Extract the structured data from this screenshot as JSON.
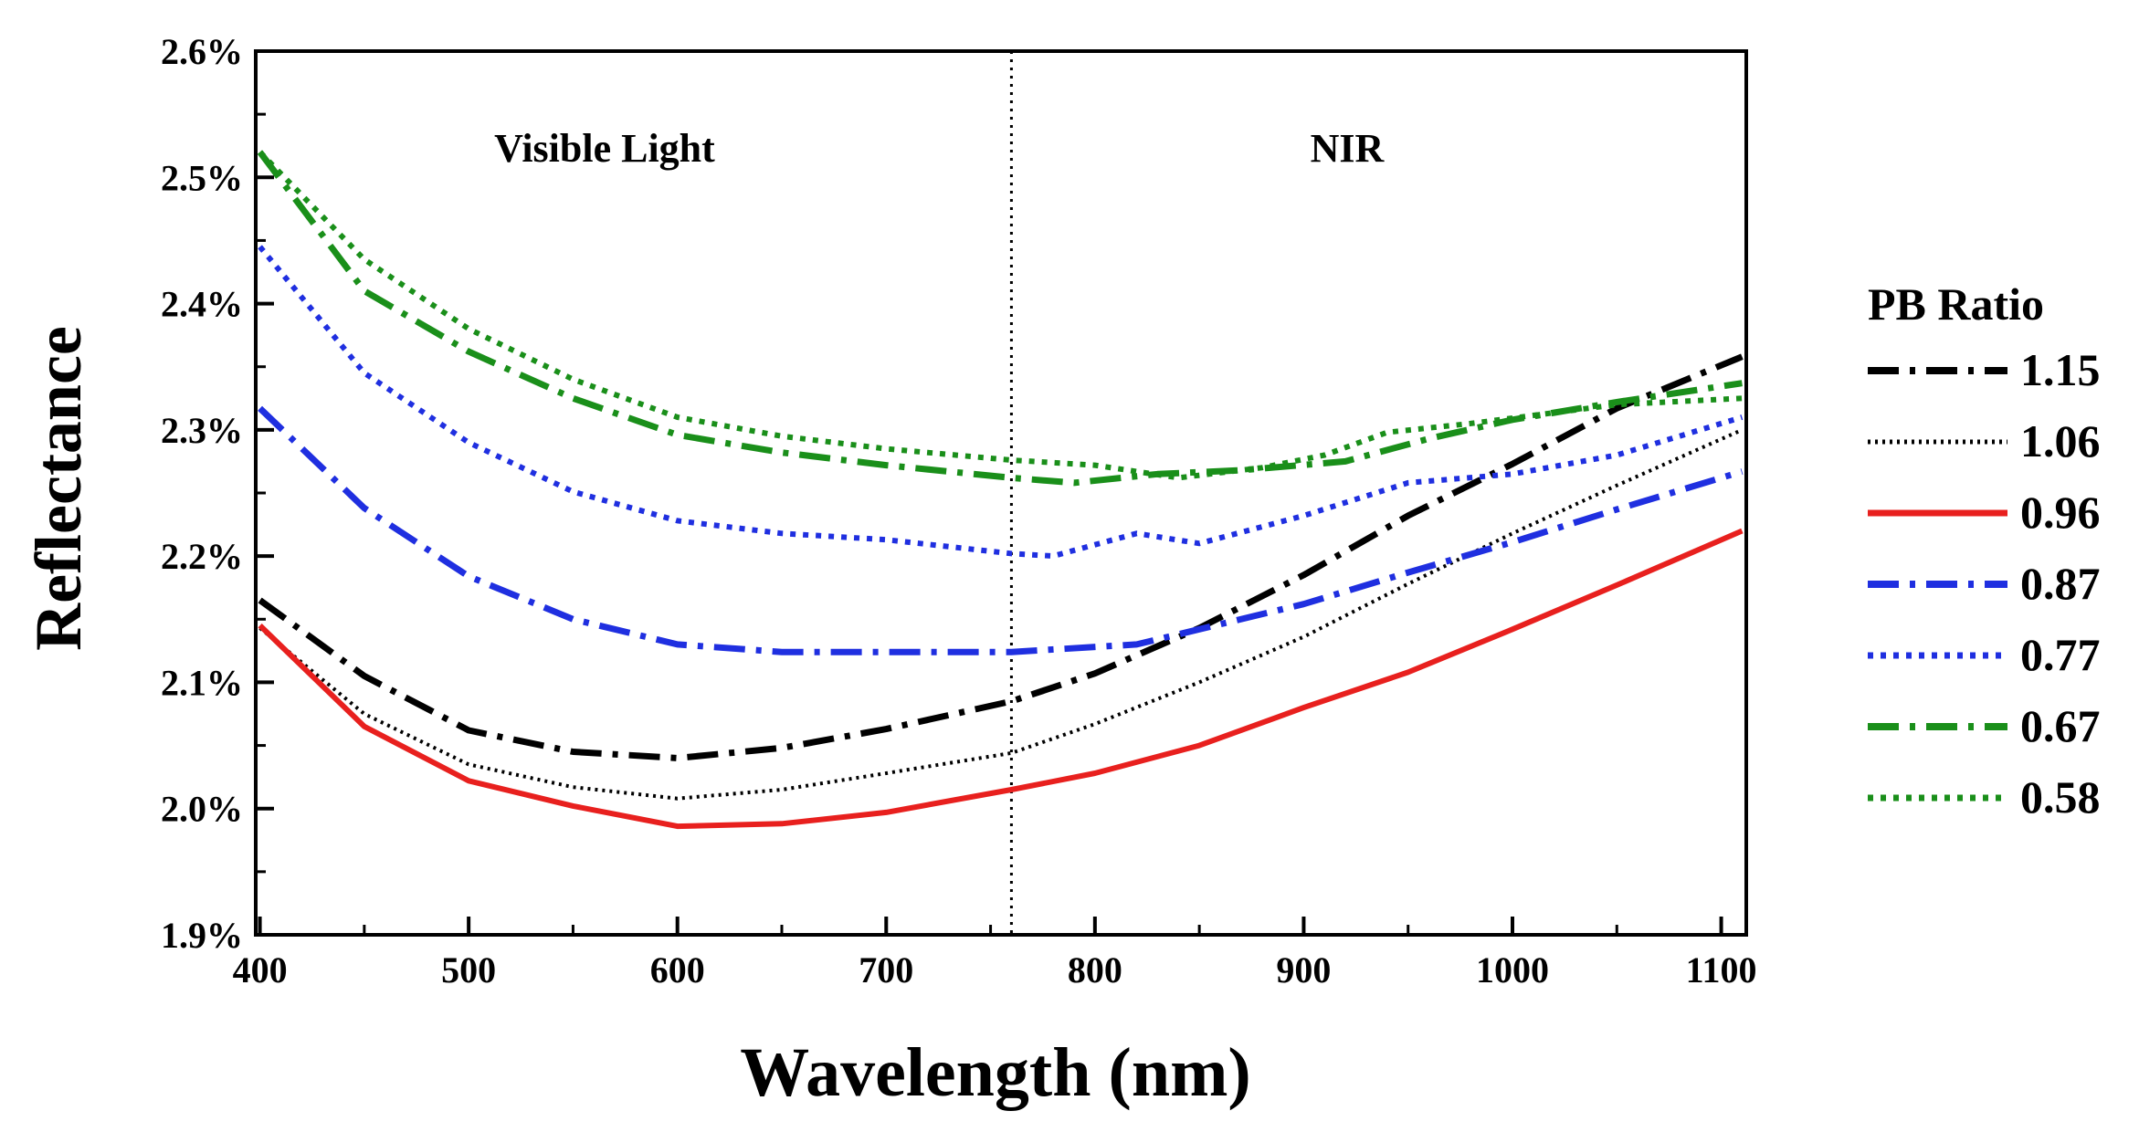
{
  "chart_data": {
    "type": "line",
    "title": "",
    "xlabel": "Wavelength (nm)",
    "ylabel": "Reflectance",
    "xlim": [
      398,
      1112
    ],
    "ylim": [
      1.9,
      2.6
    ],
    "xticks": [
      400,
      500,
      600,
      700,
      800,
      900,
      1000,
      1100
    ],
    "xtick_labels": [
      "400",
      "500",
      "600",
      "700",
      "800",
      "900",
      "1000",
      "1100"
    ],
    "yticks": [
      1.9,
      2.0,
      2.1,
      2.2,
      2.3,
      2.4,
      2.5,
      2.6
    ],
    "ytick_labels": [
      "1.9%",
      "2.0%",
      "2.1%",
      "2.2%",
      "2.3%",
      "2.4%",
      "2.5%",
      "2.6%"
    ],
    "divider_x": 760,
    "regions": [
      "Visible Light",
      "NIR"
    ],
    "legend_title": "PB Ratio",
    "legend_position": "right",
    "series": [
      {
        "name": "1.15",
        "color": "#000000",
        "dash": "dashdot",
        "x": [
          400,
          450,
          500,
          550,
          600,
          650,
          700,
          760,
          800,
          850,
          900,
          950,
          1000,
          1050,
          1110
        ],
        "values": [
          2.165,
          2.105,
          2.062,
          2.045,
          2.04,
          2.048,
          2.063,
          2.085,
          2.107,
          2.143,
          2.185,
          2.232,
          2.273,
          2.317,
          2.358
        ]
      },
      {
        "name": "1.06",
        "color": "#000000",
        "dash": "dot-fine",
        "x": [
          400,
          450,
          500,
          550,
          600,
          650,
          700,
          760,
          800,
          850,
          900,
          950,
          1000,
          1050,
          1110
        ],
        "values": [
          2.143,
          2.075,
          2.035,
          2.017,
          2.008,
          2.015,
          2.028,
          2.044,
          2.067,
          2.1,
          2.136,
          2.178,
          2.218,
          2.256,
          2.3
        ]
      },
      {
        "name": "0.96",
        "color": "#e8201e",
        "dash": "solid",
        "x": [
          400,
          450,
          500,
          550,
          600,
          650,
          700,
          760,
          800,
          850,
          900,
          950,
          1000,
          1050,
          1110
        ],
        "values": [
          2.145,
          2.065,
          2.022,
          2.002,
          1.986,
          1.988,
          1.997,
          2.015,
          2.028,
          2.05,
          2.08,
          2.108,
          2.142,
          2.177,
          2.22
        ]
      },
      {
        "name": "0.87",
        "color": "#1f2fe0",
        "dash": "dashdot",
        "x": [
          400,
          450,
          500,
          550,
          600,
          650,
          700,
          760,
          820,
          850,
          900,
          950,
          1000,
          1050,
          1110
        ],
        "values": [
          2.317,
          2.238,
          2.184,
          2.15,
          2.13,
          2.124,
          2.124,
          2.124,
          2.13,
          2.142,
          2.162,
          2.187,
          2.211,
          2.237,
          2.267
        ]
      },
      {
        "name": "0.77",
        "color": "#1f2fe0",
        "dash": "dot",
        "x": [
          400,
          450,
          500,
          550,
          600,
          650,
          700,
          760,
          780,
          820,
          850,
          900,
          950,
          1000,
          1050,
          1110
        ],
        "values": [
          2.445,
          2.345,
          2.29,
          2.251,
          2.228,
          2.218,
          2.213,
          2.202,
          2.2,
          2.218,
          2.21,
          2.232,
          2.258,
          2.265,
          2.28,
          2.31
        ]
      },
      {
        "name": "0.67",
        "color": "#1a8f1a",
        "dash": "dashdot",
        "x": [
          400,
          450,
          500,
          550,
          600,
          650,
          700,
          760,
          790,
          830,
          870,
          920,
          960,
          1000,
          1050,
          1110
        ],
        "values": [
          2.52,
          2.41,
          2.362,
          2.325,
          2.296,
          2.282,
          2.272,
          2.262,
          2.258,
          2.265,
          2.268,
          2.275,
          2.293,
          2.308,
          2.322,
          2.337
        ]
      },
      {
        "name": "0.58",
        "color": "#1a8f1a",
        "dash": "dot",
        "x": [
          400,
          450,
          500,
          550,
          600,
          650,
          700,
          760,
          800,
          840,
          880,
          910,
          940,
          980,
          1050,
          1110
        ],
        "values": [
          2.52,
          2.435,
          2.38,
          2.34,
          2.31,
          2.295,
          2.285,
          2.276,
          2.272,
          2.262,
          2.27,
          2.28,
          2.298,
          2.305,
          2.32,
          2.325
        ]
      }
    ]
  }
}
